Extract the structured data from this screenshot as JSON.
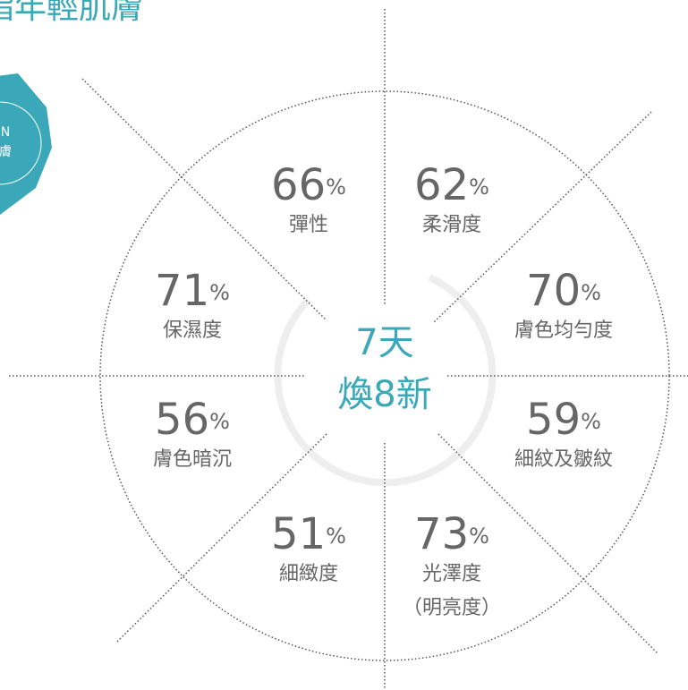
{
  "header": {
    "title": "指年輕肌膚"
  },
  "badge": {
    "lines": [
      "N",
      "膚"
    ]
  },
  "center": {
    "lines": [
      "7天",
      "煥8新"
    ]
  },
  "items": [
    {
      "value": 66,
      "unit": "%",
      "label": [
        "彈性"
      ]
    },
    {
      "value": 62,
      "unit": "%",
      "label": [
        "柔滑度"
      ]
    },
    {
      "value": 71,
      "unit": "%",
      "label": [
        "保濕度"
      ]
    },
    {
      "value": 70,
      "unit": "%",
      "label": [
        "膚色均勻度"
      ]
    },
    {
      "value": 56,
      "unit": "%",
      "label": [
        "膚色暗沉"
      ]
    },
    {
      "value": 59,
      "unit": "%",
      "label": [
        "細紋及皺紋"
      ]
    },
    {
      "value": 51,
      "unit": "%",
      "label": [
        "細緻度"
      ]
    },
    {
      "value": 73,
      "unit": "%",
      "label": [
        "光澤度",
        "（明亮度）"
      ]
    }
  ]
}
